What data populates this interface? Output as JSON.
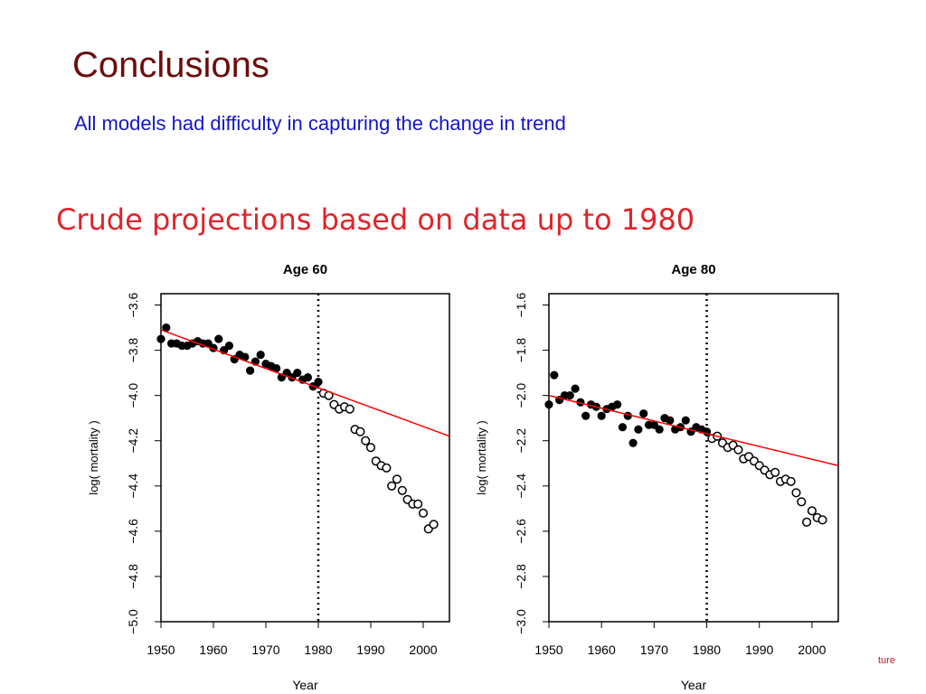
{
  "slide": {
    "title": "Conclusions",
    "subtitle": "All models had difficulty in capturing the change in trend",
    "figure_heading": "Crude projections based on data up to 1980",
    "footer_fragment": "ture"
  },
  "colors": {
    "title": "#6b0d0d",
    "subtitle": "#1515c8",
    "figure_heading": "#e0242a",
    "trend_line": "#ff0000",
    "points": "#000000"
  },
  "chart_data": [
    {
      "type": "scatter",
      "title": "Age 60",
      "xlabel": "Year",
      "ylabel": "log( mortality )",
      "xlim": [
        1950,
        2005
      ],
      "ylim": [
        -5.0,
        -3.55
      ],
      "xticks": [
        1950,
        1960,
        1970,
        1980,
        1990,
        2000
      ],
      "yticks": [
        -5.0,
        -4.8,
        -4.6,
        -4.4,
        -4.2,
        -4.0,
        -3.8,
        -3.6
      ],
      "cutoff_year": 1980,
      "fitted": [
        {
          "x": 1950,
          "y": -3.75
        },
        {
          "x": 1951,
          "y": -3.7
        },
        {
          "x": 1952,
          "y": -3.77
        },
        {
          "x": 1953,
          "y": -3.77
        },
        {
          "x": 1954,
          "y": -3.78
        },
        {
          "x": 1955,
          "y": -3.78
        },
        {
          "x": 1956,
          "y": -3.77
        },
        {
          "x": 1957,
          "y": -3.76
        },
        {
          "x": 1958,
          "y": -3.77
        },
        {
          "x": 1959,
          "y": -3.77
        },
        {
          "x": 1960,
          "y": -3.79
        },
        {
          "x": 1961,
          "y": -3.75
        },
        {
          "x": 1962,
          "y": -3.8
        },
        {
          "x": 1963,
          "y": -3.78
        },
        {
          "x": 1964,
          "y": -3.84
        },
        {
          "x": 1965,
          "y": -3.82
        },
        {
          "x": 1966,
          "y": -3.83
        },
        {
          "x": 1967,
          "y": -3.89
        },
        {
          "x": 1968,
          "y": -3.85
        },
        {
          "x": 1969,
          "y": -3.82
        },
        {
          "x": 1970,
          "y": -3.86
        },
        {
          "x": 1971,
          "y": -3.87
        },
        {
          "x": 1972,
          "y": -3.88
        },
        {
          "x": 1973,
          "y": -3.92
        },
        {
          "x": 1974,
          "y": -3.9
        },
        {
          "x": 1975,
          "y": -3.92
        },
        {
          "x": 1976,
          "y": -3.9
        },
        {
          "x": 1977,
          "y": -3.93
        },
        {
          "x": 1978,
          "y": -3.92
        },
        {
          "x": 1979,
          "y": -3.96
        },
        {
          "x": 1980,
          "y": -3.94
        }
      ],
      "observed_after": [
        {
          "x": 1981,
          "y": -3.99
        },
        {
          "x": 1982,
          "y": -4.0
        },
        {
          "x": 1983,
          "y": -4.04
        },
        {
          "x": 1984,
          "y": -4.06
        },
        {
          "x": 1985,
          "y": -4.05
        },
        {
          "x": 1986,
          "y": -4.06
        },
        {
          "x": 1987,
          "y": -4.15
        },
        {
          "x": 1988,
          "y": -4.16
        },
        {
          "x": 1989,
          "y": -4.2
        },
        {
          "x": 1990,
          "y": -4.23
        },
        {
          "x": 1991,
          "y": -4.29
        },
        {
          "x": 1992,
          "y": -4.31
        },
        {
          "x": 1993,
          "y": -4.32
        },
        {
          "x": 1994,
          "y": -4.4
        },
        {
          "x": 1995,
          "y": -4.37
        },
        {
          "x": 1996,
          "y": -4.42
        },
        {
          "x": 1997,
          "y": -4.46
        },
        {
          "x": 1998,
          "y": -4.48
        },
        {
          "x": 1999,
          "y": -4.48
        },
        {
          "x": 2000,
          "y": -4.52
        },
        {
          "x": 2001,
          "y": -4.59
        },
        {
          "x": 2002,
          "y": -4.57
        }
      ],
      "trend_line": {
        "x": [
          1950,
          2005
        ],
        "y": [
          -3.71,
          -4.18
        ]
      }
    },
    {
      "type": "scatter",
      "title": "Age 80",
      "xlabel": "Year",
      "ylabel": "log( mortality )",
      "xlim": [
        1950,
        2005
      ],
      "ylim": [
        -3.0,
        -1.55
      ],
      "xticks": [
        1950,
        1960,
        1970,
        1980,
        1990,
        2000
      ],
      "yticks": [
        -3.0,
        -2.8,
        -2.6,
        -2.4,
        -2.2,
        -2.0,
        -1.8,
        -1.6
      ],
      "cutoff_year": 1980,
      "fitted": [
        {
          "x": 1950,
          "y": -2.04
        },
        {
          "x": 1951,
          "y": -1.91
        },
        {
          "x": 1952,
          "y": -2.02
        },
        {
          "x": 1953,
          "y": -2.0
        },
        {
          "x": 1954,
          "y": -2.0
        },
        {
          "x": 1955,
          "y": -1.97
        },
        {
          "x": 1956,
          "y": -2.03
        },
        {
          "x": 1957,
          "y": -2.09
        },
        {
          "x": 1958,
          "y": -2.04
        },
        {
          "x": 1959,
          "y": -2.05
        },
        {
          "x": 1960,
          "y": -2.09
        },
        {
          "x": 1961,
          "y": -2.06
        },
        {
          "x": 1962,
          "y": -2.05
        },
        {
          "x": 1963,
          "y": -2.04
        },
        {
          "x": 1964,
          "y": -2.14
        },
        {
          "x": 1965,
          "y": -2.09
        },
        {
          "x": 1966,
          "y": -2.21
        },
        {
          "x": 1967,
          "y": -2.15
        },
        {
          "x": 1968,
          "y": -2.08
        },
        {
          "x": 1969,
          "y": -2.13
        },
        {
          "x": 1970,
          "y": -2.13
        },
        {
          "x": 1971,
          "y": -2.15
        },
        {
          "x": 1972,
          "y": -2.1
        },
        {
          "x": 1973,
          "y": -2.11
        },
        {
          "x": 1974,
          "y": -2.15
        },
        {
          "x": 1975,
          "y": -2.14
        },
        {
          "x": 1976,
          "y": -2.11
        },
        {
          "x": 1977,
          "y": -2.16
        },
        {
          "x": 1978,
          "y": -2.14
        },
        {
          "x": 1979,
          "y": -2.15
        },
        {
          "x": 1980,
          "y": -2.16
        }
      ],
      "observed_after": [
        {
          "x": 1981,
          "y": -2.19
        },
        {
          "x": 1982,
          "y": -2.18
        },
        {
          "x": 1983,
          "y": -2.21
        },
        {
          "x": 1984,
          "y": -2.23
        },
        {
          "x": 1985,
          "y": -2.22
        },
        {
          "x": 1986,
          "y": -2.24
        },
        {
          "x": 1987,
          "y": -2.28
        },
        {
          "x": 1988,
          "y": -2.27
        },
        {
          "x": 1989,
          "y": -2.29
        },
        {
          "x": 1990,
          "y": -2.31
        },
        {
          "x": 1991,
          "y": -2.33
        },
        {
          "x": 1992,
          "y": -2.35
        },
        {
          "x": 1993,
          "y": -2.34
        },
        {
          "x": 1994,
          "y": -2.38
        },
        {
          "x": 1995,
          "y": -2.37
        },
        {
          "x": 1996,
          "y": -2.38
        },
        {
          "x": 1997,
          "y": -2.43
        },
        {
          "x": 1998,
          "y": -2.47
        },
        {
          "x": 1999,
          "y": -2.56
        },
        {
          "x": 2000,
          "y": -2.51
        },
        {
          "x": 2001,
          "y": -2.54
        },
        {
          "x": 2002,
          "y": -2.55
        }
      ],
      "trend_line": {
        "x": [
          1950,
          2005
        ],
        "y": [
          -2.0,
          -2.31
        ]
      }
    }
  ]
}
